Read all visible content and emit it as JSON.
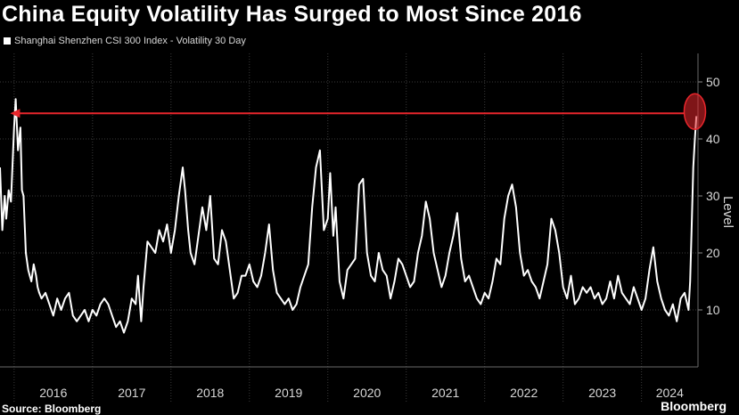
{
  "chart_data": {
    "type": "line",
    "title": "China Equity Volatility Has Surged to Most Since 2016",
    "ylabel": "Level",
    "xlabel": "",
    "ylim": [
      0,
      55
    ],
    "xlim": [
      2015.82,
      2024.72
    ],
    "yticks": [
      10,
      20,
      30,
      40,
      50
    ],
    "xticks": [
      "2016",
      "2017",
      "2018",
      "2019",
      "2020",
      "2021",
      "2022",
      "2023",
      "2024"
    ],
    "grid": true,
    "legend_position": "top-left",
    "series": [
      {
        "name": "Shanghai Shenzhen CSI 300 Index - Volatility 30 Day",
        "color": "#ffffff",
        "x": [
          2015.82,
          2015.85,
          2015.88,
          2015.9,
          2015.93,
          2015.96,
          2016.0,
          2016.02,
          2016.05,
          2016.08,
          2016.1,
          2016.12,
          2016.15,
          2016.18,
          2016.2,
          2016.22,
          2016.25,
          2016.28,
          2016.3,
          2016.32,
          2016.35,
          2016.4,
          2016.45,
          2016.5,
          2016.55,
          2016.6,
          2016.65,
          2016.7,
          2016.75,
          2016.8,
          2016.85,
          2016.9,
          2016.95,
          2017.0,
          2017.05,
          2017.1,
          2017.15,
          2017.2,
          2017.25,
          2017.3,
          2017.35,
          2017.4,
          2017.45,
          2017.5,
          2017.55,
          2017.58,
          2017.62,
          2017.65,
          2017.7,
          2017.75,
          2017.8,
          2017.85,
          2017.9,
          2017.95,
          2018.0,
          2018.05,
          2018.1,
          2018.15,
          2018.18,
          2018.22,
          2018.25,
          2018.3,
          2018.35,
          2018.4,
          2018.45,
          2018.5,
          2018.55,
          2018.6,
          2018.65,
          2018.7,
          2018.75,
          2018.8,
          2018.85,
          2018.9,
          2018.95,
          2019.0,
          2019.05,
          2019.1,
          2019.15,
          2019.2,
          2019.25,
          2019.3,
          2019.35,
          2019.4,
          2019.45,
          2019.5,
          2019.55,
          2019.6,
          2019.65,
          2019.7,
          2019.75,
          2019.8,
          2019.85,
          2019.9,
          2019.95,
          2020.0,
          2020.03,
          2020.07,
          2020.1,
          2020.15,
          2020.2,
          2020.25,
          2020.3,
          2020.35,
          2020.4,
          2020.45,
          2020.5,
          2020.55,
          2020.6,
          2020.65,
          2020.7,
          2020.75,
          2020.8,
          2020.85,
          2020.9,
          2020.95,
          2021.0,
          2021.05,
          2021.1,
          2021.15,
          2021.2,
          2021.25,
          2021.3,
          2021.35,
          2021.4,
          2021.45,
          2021.5,
          2021.55,
          2021.6,
          2021.65,
          2021.7,
          2021.75,
          2021.8,
          2021.85,
          2021.9,
          2021.95,
          2022.0,
          2022.05,
          2022.1,
          2022.15,
          2022.2,
          2022.25,
          2022.3,
          2022.35,
          2022.4,
          2022.45,
          2022.5,
          2022.55,
          2022.6,
          2022.65,
          2022.7,
          2022.75,
          2022.8,
          2022.85,
          2022.9,
          2022.95,
          2023.0,
          2023.05,
          2023.1,
          2023.15,
          2023.2,
          2023.25,
          2023.3,
          2023.35,
          2023.4,
          2023.45,
          2023.5,
          2023.55,
          2023.6,
          2023.65,
          2023.7,
          2023.75,
          2023.8,
          2023.85,
          2023.9,
          2023.95,
          2024.0,
          2024.05,
          2024.1,
          2024.15,
          2024.2,
          2024.25,
          2024.3,
          2024.35,
          2024.4,
          2024.45,
          2024.5,
          2024.55,
          2024.6,
          2024.62,
          2024.64,
          2024.66,
          2024.68,
          2024.7
        ],
        "values": [
          35,
          24,
          30,
          26,
          31,
          29,
          42,
          47,
          38,
          42,
          31,
          30,
          20,
          17,
          16,
          15,
          18,
          16,
          14,
          13,
          12,
          13,
          11,
          9,
          12,
          10,
          12,
          13,
          9,
          8,
          9,
          10,
          8,
          10,
          9,
          11,
          12,
          11,
          9,
          7,
          8,
          6,
          8,
          12,
          11,
          16,
          8,
          14,
          22,
          21,
          20,
          24,
          22,
          25,
          20,
          24,
          30,
          35,
          31,
          24,
          20,
          18,
          23,
          28,
          24,
          30,
          19,
          18,
          24,
          22,
          17,
          12,
          13,
          16,
          16,
          18,
          15,
          14,
          16,
          20,
          25,
          17,
          13,
          12,
          11,
          12,
          10,
          11,
          14,
          16,
          18,
          28,
          35,
          38,
          24,
          26,
          34,
          23,
          28,
          15,
          12,
          17,
          18,
          19,
          32,
          33,
          20,
          16,
          15,
          20,
          17,
          16,
          12,
          15,
          19,
          18,
          16,
          14,
          15,
          20,
          23,
          29,
          26,
          20,
          17,
          14,
          16,
          20,
          23,
          27,
          19,
          15,
          16,
          14,
          12,
          11,
          13,
          12,
          15,
          19,
          18,
          26,
          30,
          32,
          28,
          20,
          16,
          17,
          15,
          14,
          12,
          15,
          18,
          26,
          24,
          20,
          14,
          12,
          16,
          11,
          12,
          14,
          13,
          14,
          12,
          13,
          11,
          12,
          15,
          12,
          16,
          13,
          12,
          11,
          14,
          12,
          10,
          12,
          17,
          21,
          15,
          12,
          10,
          9,
          11,
          8,
          12,
          13,
          10,
          15,
          25,
          35,
          40,
          44
        ]
      }
    ],
    "annotations": {
      "arrow": {
        "from_x": 2024.68,
        "to_x": 2015.95,
        "y": 44.5,
        "color": "#e8262c"
      },
      "circle": {
        "x": 2024.68,
        "y": 44.5,
        "color": "#e8262c"
      }
    }
  },
  "source_label": "Source: Bloomberg",
  "brand_label": "Bloomberg"
}
